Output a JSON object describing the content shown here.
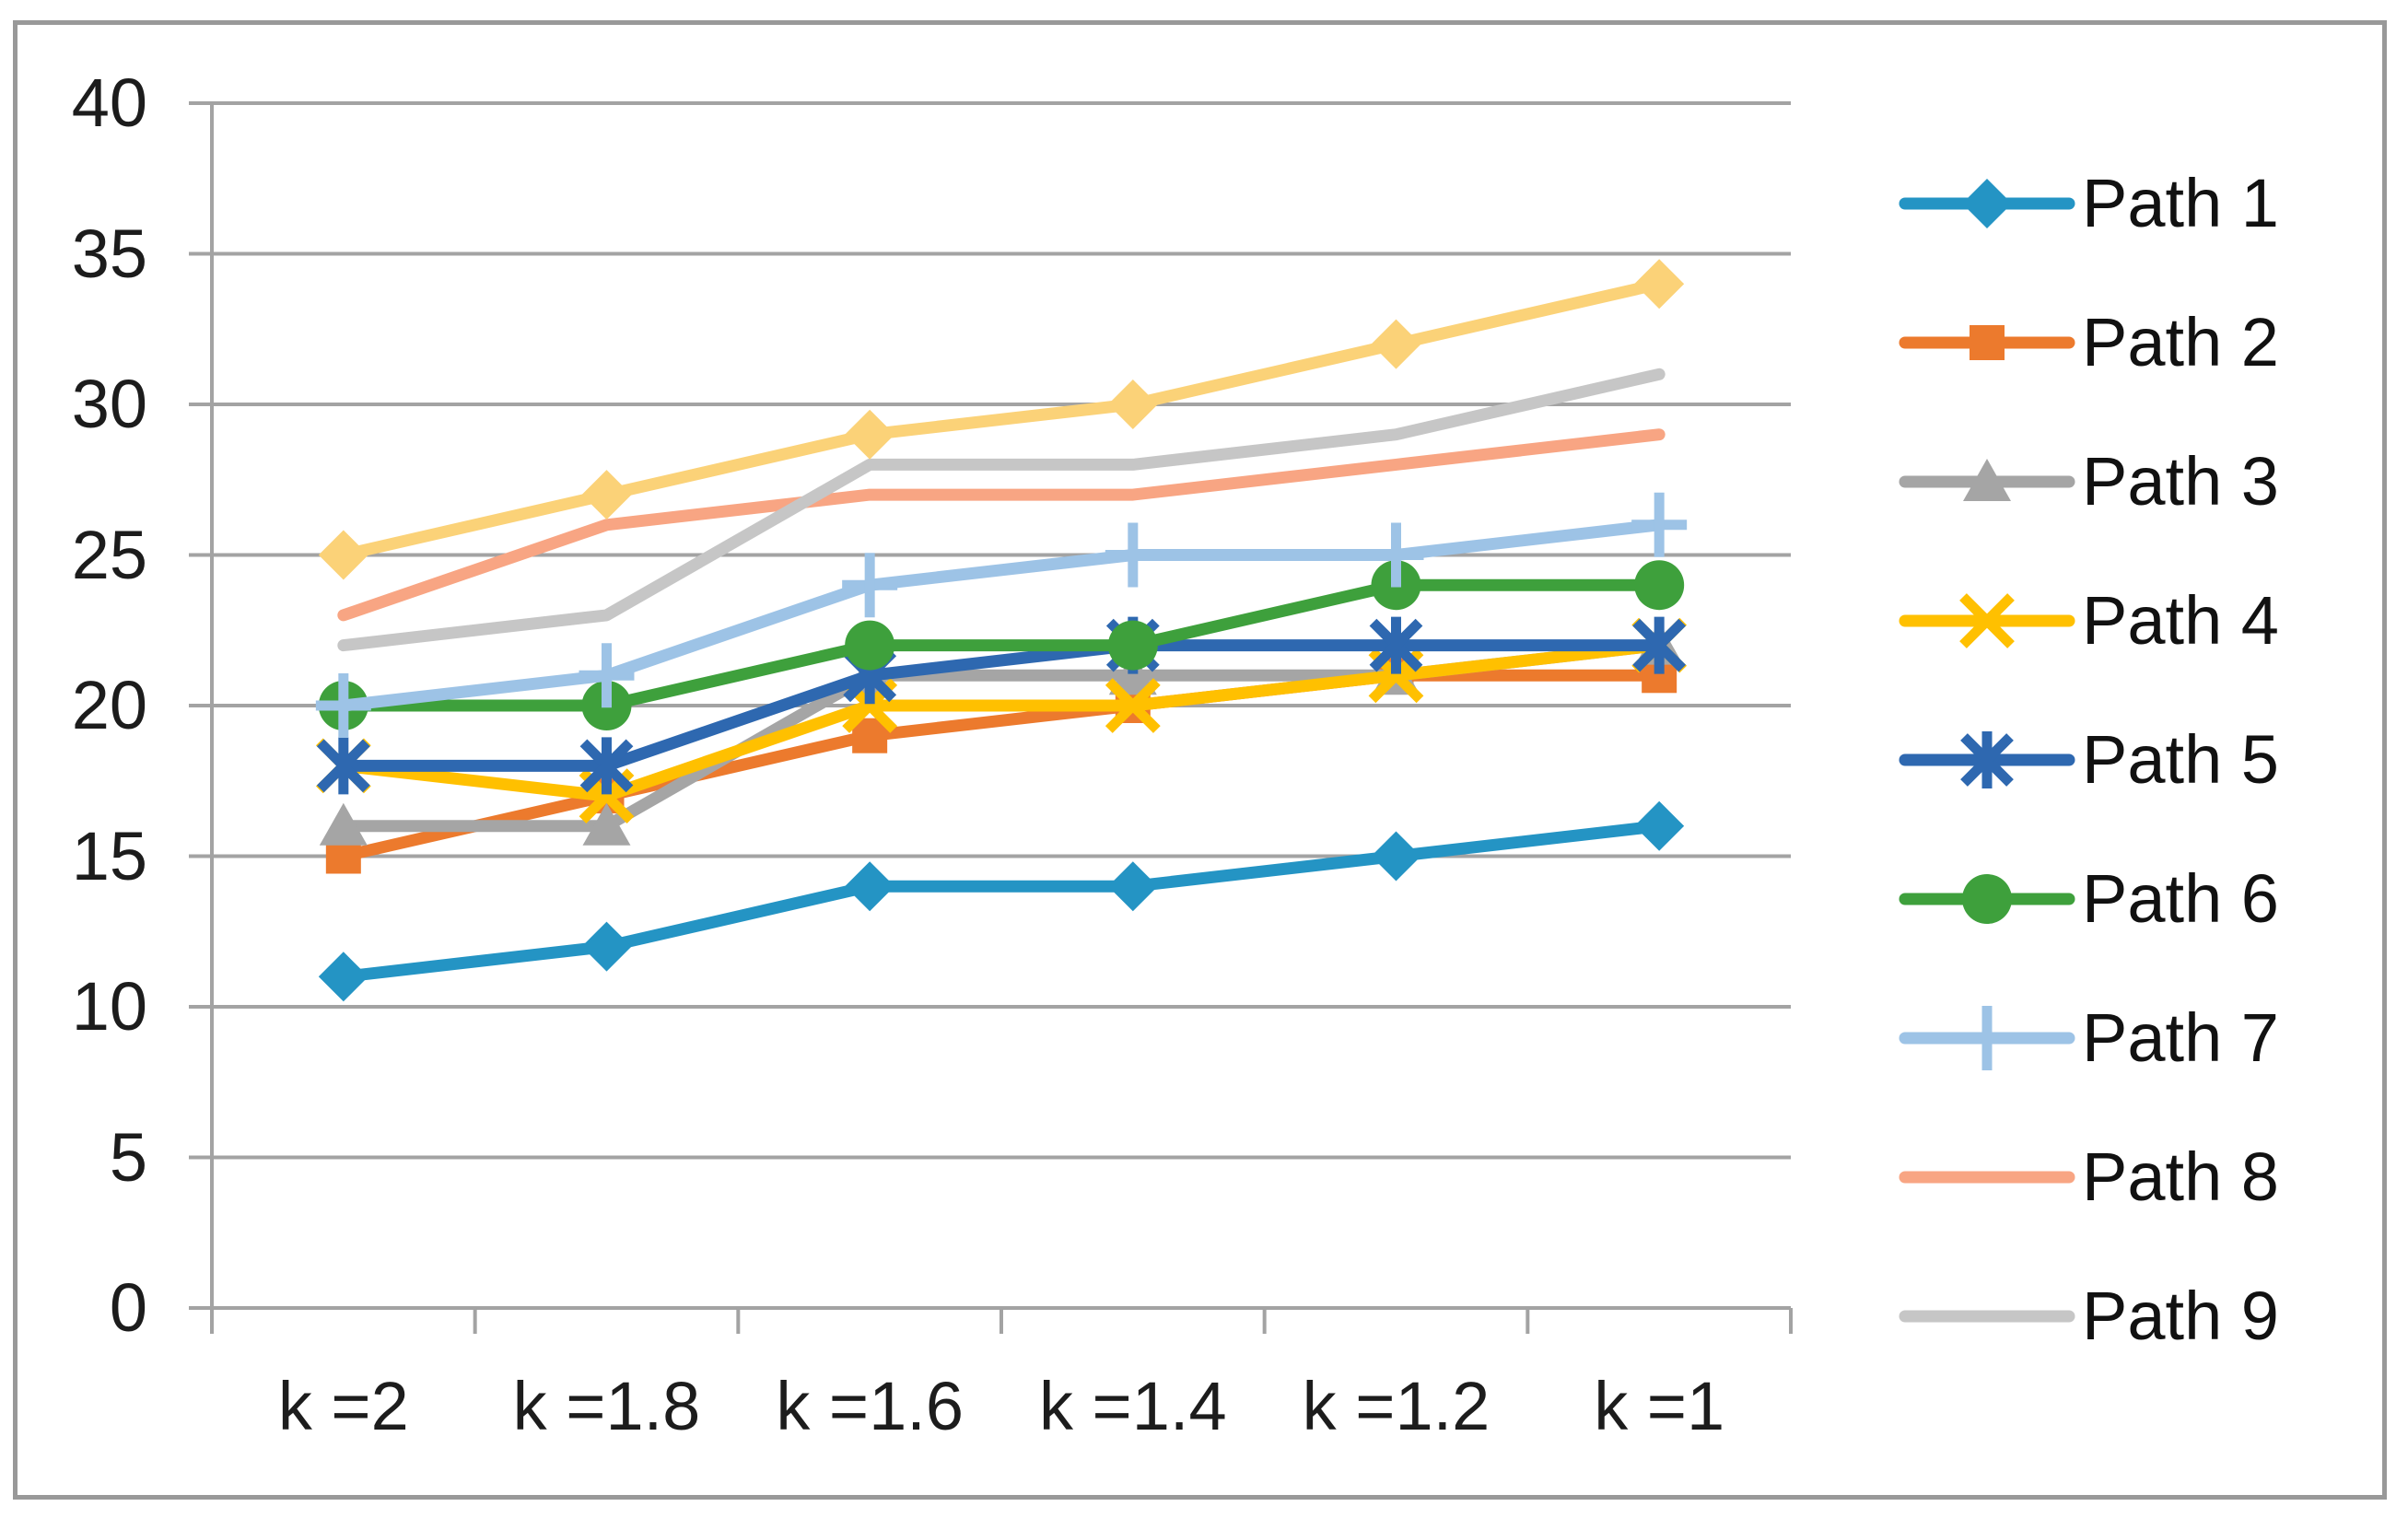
{
  "chart_data": {
    "type": "line",
    "title": "",
    "categories": [
      "k =2",
      "k =1.8",
      "k =1.6",
      "k =1.4",
      "k =1.2",
      "k =1"
    ],
    "xlabel": "",
    "ylabel": "",
    "ylim": [
      0,
      40
    ],
    "y_ticks": [
      0,
      5,
      10,
      15,
      20,
      25,
      30,
      35,
      40
    ],
    "grid": "horizontal",
    "legend_position": "right",
    "series": [
      {
        "name": "Path 1",
        "color": "#2494C4",
        "marker": "diamond",
        "values": [
          11,
          12,
          14,
          14,
          15,
          16
        ]
      },
      {
        "name": "Path 2",
        "color": "#EC7A2D",
        "marker": "square",
        "values": [
          15,
          17,
          19,
          20,
          21,
          21
        ]
      },
      {
        "name": "Path 3",
        "color": "#A5A5A5",
        "marker": "triangle",
        "values": [
          16,
          16,
          21,
          21,
          21,
          22
        ]
      },
      {
        "name": "Path 4",
        "color": "#FFC000",
        "marker": "x",
        "values": [
          18,
          17,
          20,
          20,
          21,
          22
        ]
      },
      {
        "name": "Path 5",
        "color": "#2E68B0",
        "marker": "asterisk",
        "values": [
          18,
          18,
          21,
          22,
          22,
          22
        ]
      },
      {
        "name": "Path 6",
        "color": "#3EA03C",
        "marker": "circle",
        "values": [
          20,
          20,
          22,
          22,
          24,
          24
        ]
      },
      {
        "name": "Path 7",
        "color": "#9DC3E6",
        "marker": "plus",
        "values": [
          20,
          21,
          24,
          25,
          25,
          26
        ]
      },
      {
        "name": "Path 8",
        "color": "#F8A583",
        "marker": "none",
        "values": [
          23,
          26,
          27,
          27,
          28,
          29
        ]
      },
      {
        "name": "Path 9",
        "color": "#C6C6C6",
        "marker": "none",
        "values": [
          22,
          23,
          28,
          28,
          29,
          31
        ]
      },
      {
        "name": "",
        "color": "#FBD278",
        "marker": "diamond",
        "values": [
          25,
          27,
          29,
          30,
          32,
          34
        ]
      }
    ],
    "legend_items": [
      "Path 1",
      "Path 2",
      "Path 3",
      "Path 4",
      "Path 5",
      "Path 6",
      "Path 7",
      "Path 8",
      "Path 9"
    ]
  },
  "colors": {
    "grid": "#A3A3A3",
    "axis": "#A3A3A3",
    "border": "#999999",
    "text": "#1C1C1C",
    "background": "#FFFFFF"
  }
}
